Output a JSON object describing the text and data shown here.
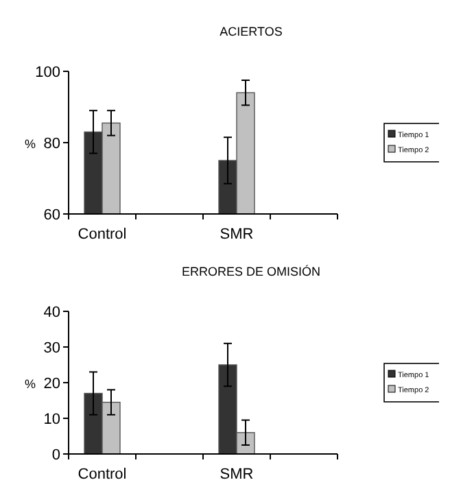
{
  "chart_data": [
    {
      "type": "bar",
      "title": "ACIERTOS",
      "ylabel": "%",
      "categories": [
        "Control",
        null,
        "SMR",
        null
      ],
      "series": [
        {
          "name": "Tiempo 1",
          "color": "#333333",
          "values": [
            83,
            null,
            75,
            null
          ],
          "errors": [
            6,
            null,
            6.5,
            null
          ]
        },
        {
          "name": "Tiempo 2",
          "color": "#c0c0c0",
          "values": [
            85.5,
            null,
            94,
            null
          ],
          "errors": [
            3.5,
            null,
            3.5,
            null
          ]
        }
      ],
      "ylim": [
        60,
        100
      ],
      "yticks": [
        60,
        80,
        100
      ],
      "legend": "right"
    },
    {
      "type": "bar",
      "title": "ERRORES DE OMISIÓN",
      "ylabel": "%",
      "categories": [
        "Control",
        null,
        "SMR",
        null
      ],
      "series": [
        {
          "name": "Tiempo 1",
          "color": "#333333",
          "values": [
            17,
            null,
            25,
            null
          ],
          "errors": [
            6,
            null,
            6,
            null
          ]
        },
        {
          "name": "Tiempo 2",
          "color": "#c0c0c0",
          "values": [
            14.5,
            null,
            6,
            null
          ],
          "errors": [
            3.5,
            null,
            3.5,
            null
          ]
        }
      ],
      "ylim": [
        0,
        40
      ],
      "yticks": [
        0,
        10,
        20,
        30,
        40
      ],
      "legend": "right"
    }
  ]
}
